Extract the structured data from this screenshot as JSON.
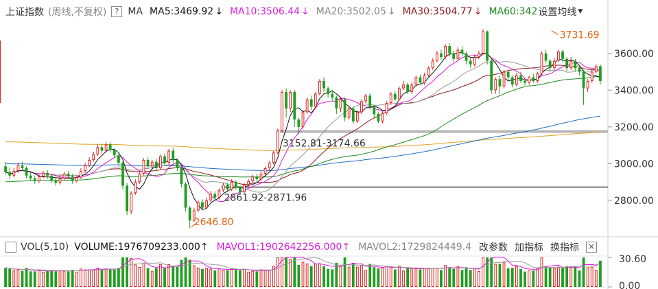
{
  "header": {
    "title": "上证指数",
    "period": "(周线,不复权)",
    "help": "?",
    "ma_label": "MA",
    "ma": [
      {
        "text": "MA5:3469.92",
        "color": "#111111",
        "arrow": "↓"
      },
      {
        "text": "MA10:3506.44",
        "color": "#d81bd8",
        "arrow": "↓"
      },
      {
        "text": "MA20:3502.05",
        "color": "#888888",
        "arrow": "↓"
      },
      {
        "text": "MA30:3504.77",
        "color": "#8b1a1a",
        "arrow": "↓"
      },
      {
        "text": "MA60:342",
        "color": "#1a8a1a",
        "arrow": ""
      }
    ],
    "set_button": "设置均线",
    "caret": "▼"
  },
  "vol_header": {
    "name": "VOL(5,10)",
    "volume": "VOLUME:1976709233.000",
    "volume_arrow": "↑",
    "mavol1": "MAVOL1:1902642256.000",
    "mavol1_arrow": "↑",
    "mavol2": "MAVOL2:1729824449.4",
    "buttons": [
      "改参数",
      "加指标",
      "换指标"
    ],
    "close": "×"
  },
  "colors": {
    "up": "#e02020",
    "down": "#1e9e1e",
    "ma5": "#111111",
    "ma10": "#d81bd8",
    "ma20": "#999999",
    "ma30": "#8b1a1a",
    "ma60": "#1a8a1a",
    "ma120": "#1f6fc4",
    "ma250": "#e0a020"
  },
  "chart_data": [
    {
      "type": "candlestick",
      "y_ticks": [
        "3600.00",
        "3400.00",
        "3200.00",
        "3000.00",
        "2800.00"
      ],
      "y_tick_values": [
        3600,
        3400,
        3200,
        3000,
        2800
      ],
      "ylim": [
        2620,
        3760
      ],
      "annotations": [
        {
          "text": "3731.69",
          "value": 3731.69,
          "bar": 130
        },
        {
          "text": "2646.80",
          "value": 2646.8,
          "bar": 44
        },
        {
          "text": "3152.81-3174.66",
          "low": 3152.81,
          "high": 3174.66
        },
        {
          "text": "2861.92-2871.96",
          "low": 2861.92,
          "high": 2871.96
        }
      ],
      "support_lines": [
        3174.66,
        2871.96
      ],
      "series_names": [
        "MA5",
        "MA10",
        "MA20",
        "MA30",
        "MA60"
      ],
      "candles": [
        [
          2985,
          2955,
          3010,
          2940
        ],
        [
          2955,
          2935,
          2980,
          2915
        ],
        [
          2935,
          2960,
          2975,
          2925
        ],
        [
          2960,
          2990,
          3005,
          2950
        ],
        [
          2990,
          2975,
          3010,
          2960
        ],
        [
          2975,
          2935,
          2985,
          2920
        ],
        [
          2935,
          2920,
          2950,
          2905
        ],
        [
          2920,
          2905,
          2935,
          2890
        ],
        [
          2905,
          2930,
          2945,
          2895
        ],
        [
          2930,
          2950,
          2960,
          2920
        ],
        [
          2950,
          2935,
          2965,
          2915
        ],
        [
          2935,
          2910,
          2945,
          2895
        ],
        [
          2910,
          2895,
          2925,
          2880
        ],
        [
          2895,
          2920,
          2935,
          2885
        ],
        [
          2920,
          2945,
          2955,
          2910
        ],
        [
          2945,
          2930,
          2960,
          2915
        ],
        [
          2930,
          2905,
          2945,
          2890
        ],
        [
          2905,
          2925,
          2935,
          2895
        ],
        [
          2925,
          2960,
          2975,
          2915
        ],
        [
          2960,
          2990,
          3005,
          2950
        ],
        [
          2990,
          3020,
          3035,
          2980
        ],
        [
          3020,
          3050,
          3065,
          3010
        ],
        [
          3050,
          3090,
          3105,
          3040
        ],
        [
          3090,
          3070,
          3110,
          3055
        ],
        [
          3070,
          3105,
          3120,
          3060
        ],
        [
          3105,
          3075,
          3115,
          3060
        ],
        [
          3075,
          3045,
          3085,
          3030
        ],
        [
          3045,
          3005,
          3055,
          2990
        ],
        [
          3005,
          2880,
          3015,
          2860
        ],
        [
          2880,
          2740,
          2895,
          2720
        ],
        [
          2740,
          2840,
          2850,
          2725
        ],
        [
          2840,
          2900,
          2915,
          2830
        ],
        [
          2900,
          2945,
          2960,
          2890
        ],
        [
          2945,
          3020,
          3030,
          2935
        ],
        [
          3020,
          2985,
          3035,
          2970
        ],
        [
          2985,
          3010,
          3020,
          2975
        ],
        [
          3010,
          2975,
          3025,
          2960
        ],
        [
          2975,
          3040,
          3050,
          2965
        ],
        [
          3040,
          3005,
          3055,
          2990
        ],
        [
          3005,
          3070,
          3080,
          2995
        ],
        [
          3070,
          3020,
          3085,
          3005
        ],
        [
          3020,
          2975,
          3030,
          2960
        ],
        [
          2975,
          2890,
          2985,
          2870
        ],
        [
          2890,
          2760,
          2900,
          2740
        ],
        [
          2760,
          2690,
          2770,
          2647
        ],
        [
          2690,
          2745,
          2760,
          2680
        ],
        [
          2745,
          2790,
          2800,
          2735
        ],
        [
          2790,
          2760,
          2805,
          2745
        ],
        [
          2760,
          2800,
          2815,
          2750
        ],
        [
          2800,
          2835,
          2850,
          2790
        ],
        [
          2835,
          2815,
          2850,
          2800
        ],
        [
          2815,
          2855,
          2865,
          2805
        ],
        [
          2855,
          2885,
          2895,
          2845
        ],
        [
          2885,
          2860,
          2895,
          2845
        ],
        [
          2860,
          2900,
          2915,
          2850
        ],
        [
          2900,
          2870,
          2910,
          2855
        ],
        [
          2870,
          2845,
          2880,
          2830
        ],
        [
          2845,
          2885,
          2895,
          2838
        ],
        [
          2885,
          2905,
          2915,
          2875
        ],
        [
          2905,
          2930,
          2940,
          2895
        ],
        [
          2930,
          2915,
          2945,
          2900
        ],
        [
          2915,
          2945,
          2960,
          2905
        ],
        [
          2945,
          2975,
          2985,
          2935
        ],
        [
          2975,
          3005,
          3015,
          2965
        ],
        [
          3005,
          3060,
          3070,
          2995
        ],
        [
          3060,
          3180,
          3190,
          3050
        ],
        [
          3180,
          3390,
          3400,
          3170
        ],
        [
          3390,
          3300,
          3410,
          3250
        ],
        [
          3300,
          3390,
          3400,
          3280
        ],
        [
          3390,
          3240,
          3400,
          3200
        ],
        [
          3240,
          3200,
          3250,
          3160
        ],
        [
          3200,
          3280,
          3290,
          3190
        ],
        [
          3280,
          3350,
          3360,
          3270
        ],
        [
          3350,
          3310,
          3370,
          3290
        ],
        [
          3310,
          3380,
          3390,
          3300
        ],
        [
          3380,
          3450,
          3460,
          3370
        ],
        [
          3450,
          3410,
          3470,
          3390
        ],
        [
          3410,
          3380,
          3420,
          3360
        ],
        [
          3380,
          3360,
          3400,
          3340
        ],
        [
          3360,
          3300,
          3370,
          3270
        ],
        [
          3300,
          3350,
          3360,
          3280
        ],
        [
          3350,
          3250,
          3360,
          3230
        ],
        [
          3250,
          3300,
          3310,
          3240
        ],
        [
          3300,
          3230,
          3310,
          3215
        ],
        [
          3230,
          3280,
          3290,
          3220
        ],
        [
          3280,
          3340,
          3350,
          3270
        ],
        [
          3340,
          3370,
          3380,
          3330
        ],
        [
          3370,
          3310,
          3385,
          3295
        ],
        [
          3310,
          3270,
          3320,
          3250
        ],
        [
          3270,
          3230,
          3280,
          3220
        ],
        [
          3230,
          3275,
          3285,
          3220
        ],
        [
          3275,
          3330,
          3340,
          3265
        ],
        [
          3330,
          3380,
          3390,
          3320
        ],
        [
          3380,
          3350,
          3395,
          3340
        ],
        [
          3350,
          3410,
          3420,
          3345
        ],
        [
          3410,
          3430,
          3450,
          3400
        ],
        [
          3430,
          3390,
          3440,
          3380
        ],
        [
          3390,
          3430,
          3445,
          3380
        ],
        [
          3430,
          3470,
          3480,
          3420
        ],
        [
          3470,
          3440,
          3485,
          3430
        ],
        [
          3440,
          3480,
          3495,
          3430
        ],
        [
          3480,
          3520,
          3530,
          3470
        ],
        [
          3520,
          3560,
          3575,
          3510
        ],
        [
          3560,
          3600,
          3615,
          3550
        ],
        [
          3600,
          3580,
          3620,
          3565
        ],
        [
          3580,
          3640,
          3650,
          3570
        ],
        [
          3640,
          3600,
          3655,
          3585
        ],
        [
          3600,
          3570,
          3615,
          3555
        ],
        [
          3570,
          3620,
          3635,
          3560
        ],
        [
          3620,
          3600,
          3640,
          3585
        ],
        [
          3600,
          3560,
          3610,
          3540
        ],
        [
          3560,
          3540,
          3575,
          3520
        ],
        [
          3540,
          3580,
          3595,
          3530
        ],
        [
          3580,
          3600,
          3615,
          3570
        ],
        [
          3600,
          3720,
          3731.69,
          3590
        ],
        [
          3720,
          3560,
          3725,
          3540
        ],
        [
          3560,
          3400,
          3570,
          3380
        ],
        [
          3400,
          3460,
          3470,
          3380
        ],
        [
          3460,
          3420,
          3480,
          3380
        ],
        [
          3420,
          3500,
          3510,
          3410
        ],
        [
          3500,
          3470,
          3515,
          3450
        ],
        [
          3470,
          3430,
          3480,
          3415
        ],
        [
          3430,
          3480,
          3495,
          3420
        ],
        [
          3480,
          3450,
          3500,
          3440
        ],
        [
          3450,
          3440,
          3470,
          3425
        ],
        [
          3440,
          3470,
          3480,
          3430
        ],
        [
          3470,
          3450,
          3490,
          3440
        ],
        [
          3450,
          3490,
          3500,
          3440
        ],
        [
          3490,
          3600,
          3610,
          3480
        ],
        [
          3600,
          3560,
          3620,
          3545
        ],
        [
          3560,
          3520,
          3570,
          3500
        ],
        [
          3520,
          3560,
          3575,
          3510
        ],
        [
          3560,
          3610,
          3620,
          3550
        ],
        [
          3610,
          3570,
          3620,
          3555
        ],
        [
          3570,
          3520,
          3580,
          3505
        ],
        [
          3520,
          3560,
          3580,
          3510
        ],
        [
          3560,
          3520,
          3570,
          3500
        ],
        [
          3520,
          3500,
          3530,
          3480
        ],
        [
          3500,
          3410,
          3510,
          3320
        ],
        [
          3410,
          3450,
          3460,
          3390
        ],
        [
          3450,
          3500,
          3510,
          3440
        ],
        [
          3500,
          3530,
          3540,
          3490
        ],
        [
          3530,
          3450,
          3540,
          3430
        ]
      ]
    },
    {
      "type": "bar",
      "y_ticks": [
        "30.60",
        "0.00"
      ],
      "ylim": [
        0,
        30.6
      ],
      "series_names": [
        "VOL",
        "MAVOL1",
        "MAVOL2"
      ]
    }
  ]
}
